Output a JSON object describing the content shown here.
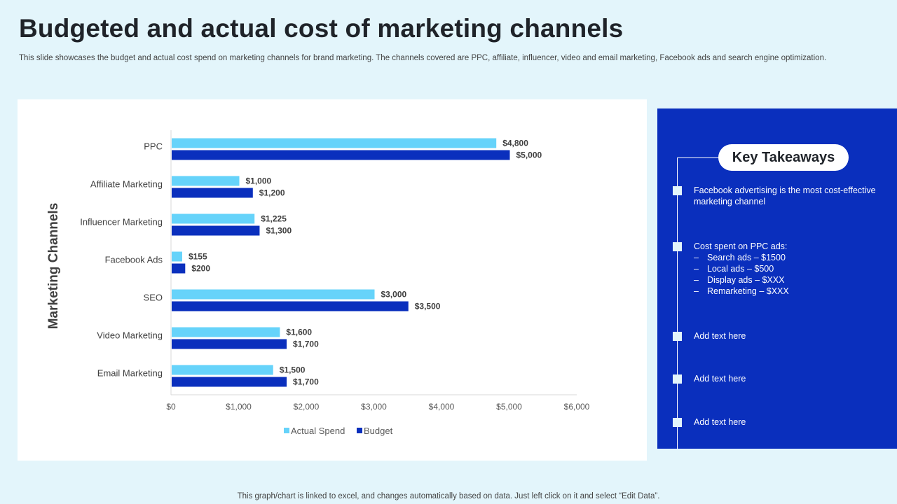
{
  "slide": {
    "title": "Budgeted and actual cost of marketing channels",
    "subtitle": "This slide showcases the budget and actual cost spend on marketing channels for brand marketing. The channels covered are PPC, affiliate, influencer, video and email marketing, Facebook ads and search engine optimization.",
    "footer": "This graph/chart is linked to excel,  and changes automatically based on data. Just left click on it and select “Edit Data”."
  },
  "colors": {
    "actual": "#66d3fa",
    "budget": "#0a2fbd",
    "panel": "#0a2fbd",
    "background": "#e3f5fb"
  },
  "chart_data": {
    "type": "bar",
    "orientation": "horizontal",
    "title": "",
    "xlabel": "",
    "ylabel": "Marketing Channels",
    "categories": [
      "PPC",
      "Affiliate Marketing",
      "Influencer Marketing",
      "Facebook Ads",
      "SEO",
      "Video Marketing",
      "Email Marketing"
    ],
    "series": [
      {
        "name": "Actual Spend",
        "values": [
          4800,
          1000,
          1225,
          155,
          3000,
          1600,
          1500
        ],
        "labels": [
          "$4,800",
          "$1,000",
          "$1,225",
          "$155",
          "$3,000",
          "$1,600",
          "$1,500"
        ]
      },
      {
        "name": "Budget",
        "values": [
          5000,
          1200,
          1300,
          200,
          3500,
          1700,
          1700
        ],
        "labels": [
          "$5,000",
          "$1,200",
          "$1,300",
          "$200",
          "$3,500",
          "$1,700",
          "$1,700"
        ]
      }
    ],
    "xlim": [
      0,
      6000
    ],
    "xticks": [
      0,
      1000,
      2000,
      3000,
      4000,
      5000,
      6000
    ],
    "xtick_labels": [
      "$0",
      "$1,000",
      "$2,000",
      "$3,000",
      "$4,000",
      "$5,000",
      "$6,000"
    ],
    "grid": false,
    "legend_position": "bottom"
  },
  "takeaways": {
    "heading": "Key Takeaways",
    "item1": "Facebook advertising  is the most cost-effective  marketing channel",
    "item2_heading": "Cost spent on PPC ads:",
    "item2_subs": [
      {
        "dash": "–",
        "text": "Search ads – $1500"
      },
      {
        "dash": "–",
        "text": "Local ads – $500"
      },
      {
        "dash": "–",
        "text": "Display ads – $XXX"
      },
      {
        "dash": "–",
        "text": "Remarketing – $XXX"
      }
    ],
    "item3": "Add text here",
    "item4": "Add text here",
    "item5": "Add text here"
  }
}
